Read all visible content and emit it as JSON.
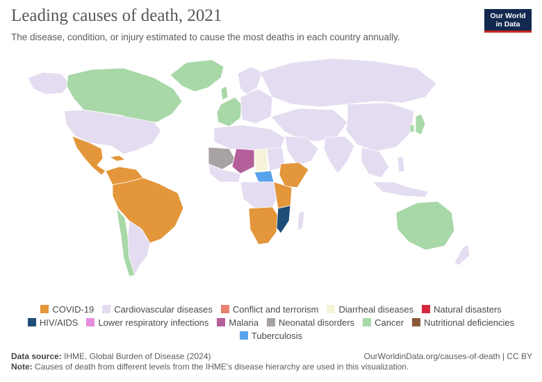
{
  "header": {
    "title": "Leading causes of death, 2021",
    "subtitle": "The disease, condition, or injury estimated to cause the most deaths in each country annually.",
    "logo_line1": "Our World",
    "logo_line2": "in Data"
  },
  "legend": {
    "row1": [
      {
        "label": "COVID-19",
        "color": "#e3963a"
      },
      {
        "label": "Cardiovascular diseases",
        "color": "#e4dcf0"
      },
      {
        "label": "Conflict and terrorism",
        "color": "#e6826e"
      },
      {
        "label": "Diarrheal diseases",
        "color": "#f7f3d9"
      },
      {
        "label": "Natural disasters",
        "color": "#d7283e"
      }
    ],
    "row2": [
      {
        "label": "HIV/AIDS",
        "color": "#1f4e79"
      },
      {
        "label": "Lower respiratory infections",
        "color": "#e58ee0"
      },
      {
        "label": "Malaria",
        "color": "#b45f9a"
      },
      {
        "label": "Neonatal disorders",
        "color": "#a8a2a2"
      },
      {
        "label": "Cancer",
        "color": "#a8d8a8"
      },
      {
        "label": "Nutritional deficiencies",
        "color": "#8b5a3a"
      }
    ],
    "row3": [
      {
        "label": "Tuberculosis",
        "color": "#5aa2ec"
      }
    ]
  },
  "footer": {
    "source_label": "Data source:",
    "source_text": "IHME, Global Burden of Disease (2024)",
    "url": "OurWorldinData.org/causes-of-death | CC BY",
    "note_label": "Note:",
    "note_text": "Causes of death from different levels from the IHME's disease hierarchy are used in this visualization."
  }
}
